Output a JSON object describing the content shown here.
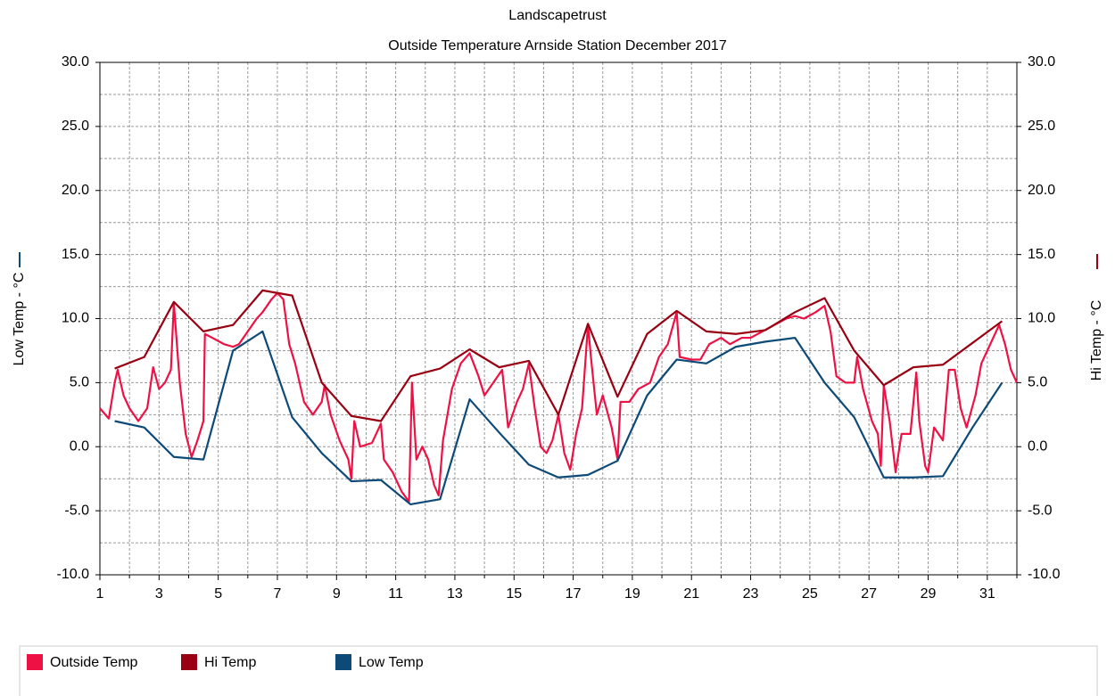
{
  "chart_data": {
    "type": "line",
    "title": "Landscapetrust",
    "subtitle": "Outside Temperature Arnside Station December 2017",
    "ylabel": "Low Temp - °C",
    "y2label": "Hi Temp - °C",
    "xlim": [
      1,
      32
    ],
    "xticks": [
      1,
      3,
      5,
      7,
      9,
      11,
      13,
      15,
      17,
      19,
      21,
      23,
      25,
      27,
      29,
      31
    ],
    "xminorticks": [
      2,
      4,
      6,
      8,
      10,
      12,
      14,
      16,
      18,
      20,
      22,
      24,
      26,
      28,
      30,
      32
    ],
    "ylim": [
      -10,
      30
    ],
    "yticks": [
      {
        "value": -10,
        "label": "-10.0"
      },
      {
        "value": -5,
        "label": "-5.0"
      },
      {
        "value": 0,
        "label": "0.0"
      },
      {
        "value": 5,
        "label": "5.0"
      },
      {
        "value": 10,
        "label": "10.0"
      },
      {
        "value": 15,
        "label": "15.0"
      },
      {
        "value": 20,
        "label": "20.0"
      },
      {
        "value": 25,
        "label": "25.0"
      },
      {
        "value": 30,
        "label": "30.0"
      }
    ],
    "yminorticks": [
      -7.5,
      -2.5,
      2.5,
      7.5,
      12.5,
      17.5,
      22.5,
      27.5
    ],
    "y2lim": [
      -10,
      30
    ],
    "y2ticks": [
      {
        "value": -10,
        "label": "-10.0"
      },
      {
        "value": -5,
        "label": "-5.0"
      },
      {
        "value": 0,
        "label": "0.0"
      },
      {
        "value": 5,
        "label": "5.0"
      },
      {
        "value": 10,
        "label": "10.0"
      },
      {
        "value": 15,
        "label": "15.0"
      },
      {
        "value": 20,
        "label": "20.0"
      },
      {
        "value": 25,
        "label": "25.0"
      },
      {
        "value": 30,
        "label": "30.0"
      }
    ],
    "grid": true,
    "legend": "bottom",
    "series": [
      {
        "name": "Outside Temp",
        "color": "#ee1144",
        "x": [
          1.0,
          1.3,
          1.5,
          1.6,
          1.8,
          2.0,
          2.3,
          2.6,
          2.8,
          3.0,
          3.2,
          3.4,
          3.5,
          3.7,
          3.9,
          4.1,
          4.3,
          4.5,
          4.55,
          4.8,
          5.2,
          5.5,
          5.7,
          6.0,
          6.3,
          6.5,
          6.8,
          7.0,
          7.2,
          7.4,
          7.6,
          7.9,
          8.2,
          8.5,
          8.6,
          8.8,
          9.1,
          9.4,
          9.5,
          9.6,
          9.8,
          10.2,
          10.5,
          10.6,
          10.9,
          11.2,
          11.45,
          11.55,
          11.7,
          11.9,
          12.1,
          12.3,
          12.45,
          12.6,
          12.9,
          13.2,
          13.5,
          13.8,
          14.0,
          14.3,
          14.6,
          14.8,
          15.1,
          15.3,
          15.5,
          15.7,
          15.9,
          16.1,
          16.3,
          16.5,
          16.7,
          16.9,
          17.1,
          17.3,
          17.5,
          17.6,
          17.8,
          18.0,
          18.3,
          18.5,
          18.6,
          18.9,
          19.2,
          19.6,
          19.9,
          20.2,
          20.5,
          20.6,
          21.0,
          21.3,
          21.6,
          22.0,
          22.3,
          22.7,
          23.0,
          23.4,
          23.8,
          24.2,
          24.5,
          24.8,
          25.2,
          25.5,
          25.7,
          25.9,
          26.2,
          26.5,
          26.6,
          26.8,
          27.1,
          27.3,
          27.4,
          27.5,
          27.7,
          27.9,
          28.1,
          28.4,
          28.6,
          28.7,
          28.9,
          29.0,
          29.2,
          29.5,
          29.7,
          29.9,
          30.1,
          30.3,
          30.6,
          30.8,
          31.0,
          31.2,
          31.4,
          31.6,
          31.8,
          32.0
        ],
        "values": [
          3.0,
          2.2,
          5.0,
          6.0,
          4.0,
          3.0,
          2.0,
          3.0,
          6.2,
          4.5,
          5.0,
          6.0,
          11.2,
          5.0,
          1.0,
          -0.8,
          0.5,
          2.0,
          8.8,
          8.5,
          8.0,
          7.8,
          8.0,
          9.0,
          10.0,
          10.5,
          11.5,
          12.0,
          11.5,
          8.0,
          6.5,
          3.5,
          2.5,
          3.5,
          4.8,
          2.5,
          0.5,
          -1.0,
          -2.5,
          2.0,
          0.0,
          0.3,
          1.8,
          -1.0,
          -2.0,
          -3.5,
          -4.3,
          5.0,
          -1.0,
          0.0,
          -1.0,
          -3.0,
          -3.8,
          0.5,
          4.5,
          6.5,
          7.3,
          5.5,
          4.0,
          5.0,
          6.0,
          1.5,
          3.5,
          4.5,
          6.5,
          3.0,
          0.0,
          -0.5,
          0.5,
          2.5,
          -0.5,
          -1.8,
          1.0,
          3.0,
          9.5,
          7.0,
          2.5,
          4.0,
          1.5,
          -1.0,
          3.5,
          3.5,
          4.5,
          5.0,
          7.0,
          8.0,
          10.5,
          7.0,
          6.8,
          6.8,
          8.0,
          8.5,
          8.0,
          8.5,
          8.5,
          9.0,
          9.5,
          10.0,
          10.2,
          10.0,
          10.5,
          11.0,
          9.0,
          5.5,
          5.0,
          5.0,
          7.0,
          4.5,
          2.0,
          1.0,
          -1.5,
          4.8,
          2.0,
          -2.0,
          1.0,
          1.0,
          5.8,
          2.0,
          -1.5,
          -2.0,
          1.5,
          0.5,
          6.0,
          6.0,
          3.0,
          1.5,
          4.0,
          6.5,
          7.5,
          8.5,
          9.5,
          8.0,
          6.0,
          5.0
        ]
      },
      {
        "name": "Hi Temp",
        "color": "#990011",
        "axis": "y2",
        "x": [
          1.5,
          2.5,
          3.5,
          4.5,
          5.5,
          6.5,
          7.5,
          8.5,
          9.5,
          10.5,
          11.5,
          12.5,
          13.5,
          14.5,
          15.5,
          16.5,
          17.5,
          18.5,
          19.5,
          20.5,
          21.5,
          22.5,
          23.5,
          24.5,
          25.5,
          26.5,
          27.5,
          28.5,
          29.5,
          30.5,
          31.5
        ],
        "values": [
          6.1,
          7.0,
          11.3,
          9.0,
          9.5,
          12.2,
          11.8,
          5.0,
          2.4,
          2.0,
          5.5,
          6.1,
          7.6,
          6.2,
          6.7,
          2.5,
          9.6,
          3.9,
          8.8,
          10.6,
          9.0,
          8.8,
          9.1,
          10.5,
          11.6,
          7.5,
          4.8,
          6.2,
          6.4,
          8.1,
          9.8
        ]
      },
      {
        "name": "Low Temp",
        "color": "#0e4a78",
        "x": [
          1.5,
          2.5,
          3.5,
          4.5,
          5.5,
          6.5,
          7.5,
          8.5,
          9.5,
          10.5,
          11.5,
          12.5,
          13.5,
          14.5,
          15.5,
          16.5,
          17.5,
          18.5,
          19.5,
          20.5,
          21.5,
          22.5,
          23.5,
          24.5,
          25.5,
          26.5,
          27.5,
          28.5,
          29.5,
          30.5,
          31.5
        ],
        "values": [
          2.0,
          1.5,
          -0.8,
          -1.0,
          7.5,
          9.0,
          2.3,
          -0.5,
          -2.7,
          -2.6,
          -4.5,
          -4.1,
          3.7,
          1.1,
          -1.4,
          -2.4,
          -2.2,
          -1.1,
          4.0,
          6.8,
          6.5,
          7.8,
          8.2,
          8.5,
          5.0,
          2.3,
          -2.4,
          -2.4,
          -2.3,
          1.5,
          5.0
        ]
      }
    ]
  }
}
